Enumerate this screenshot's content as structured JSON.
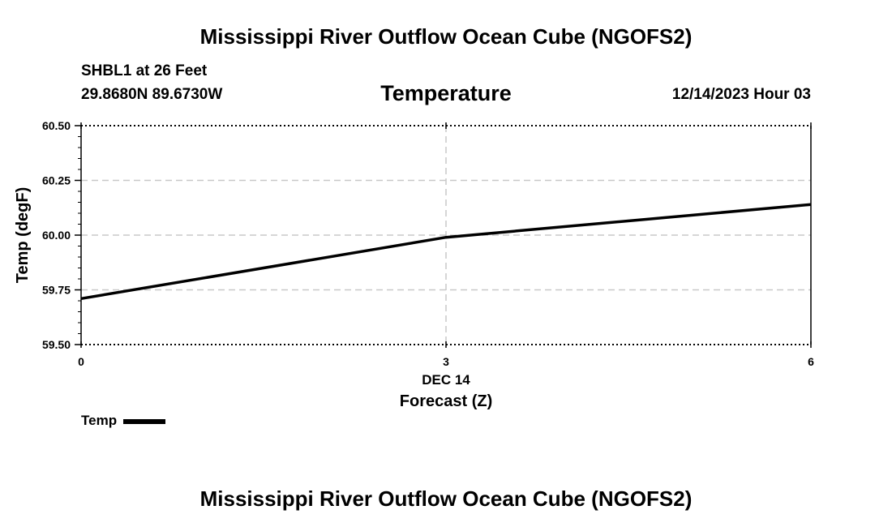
{
  "header": {
    "main_title": "Mississippi River Outflow Ocean Cube (NGOFS2)",
    "station": "SHBL1 at 26 Feet",
    "coordinates": "29.8680N  89.6730W",
    "panel_title": "Temperature",
    "datetime": "12/14/2023 Hour 03"
  },
  "footer": {
    "title": "Mississippi River Outflow Ocean Cube (NGOFS2)"
  },
  "chart_data": {
    "type": "line",
    "title": "Temperature",
    "xlabel": "Forecast (Z)",
    "ylabel": "Temp (degF)",
    "xlim": [
      0,
      6
    ],
    "ylim": [
      59.5,
      60.5
    ],
    "x_ticks": [
      0,
      3,
      6
    ],
    "x_tick_labels": [
      "0",
      "3",
      "6"
    ],
    "x_date_label": "DEC 14",
    "y_ticks": [
      59.5,
      59.75,
      60.0,
      60.25,
      60.5
    ],
    "y_tick_labels": [
      "59.50",
      "59.75",
      "60.00",
      "60.25",
      "60.50"
    ],
    "grid": true,
    "legend_position": "bottom-left",
    "series": [
      {
        "name": "Temp",
        "color": "#000000",
        "x": [
          0,
          3,
          6
        ],
        "y": [
          59.71,
          59.99,
          60.14
        ]
      }
    ]
  }
}
